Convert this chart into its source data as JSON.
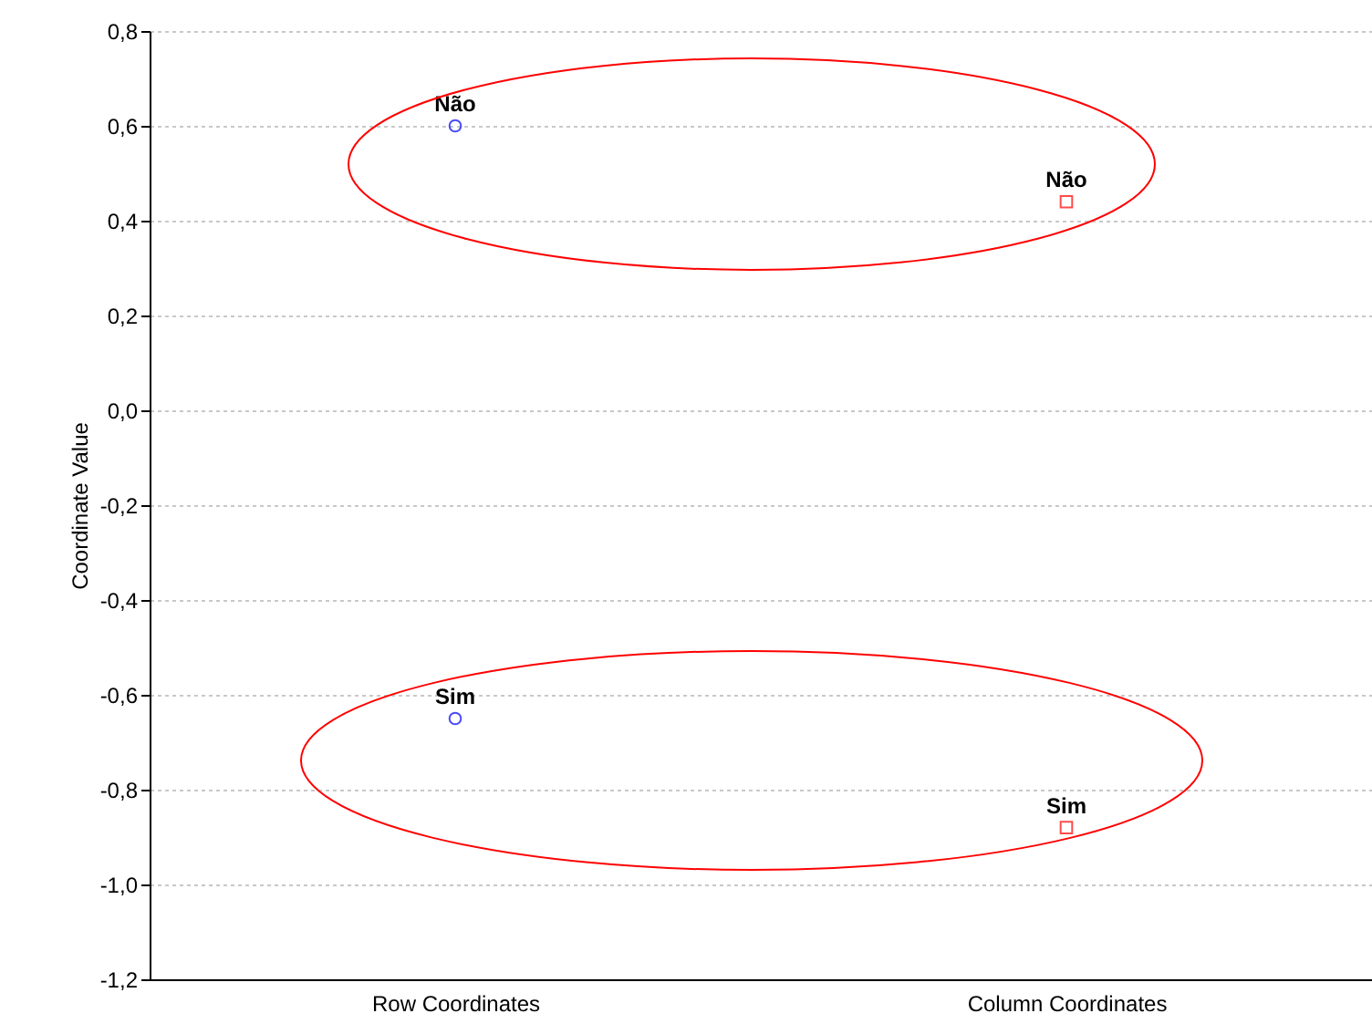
{
  "chart_data": {
    "type": "scatter",
    "ylabel": "Coordinate Value",
    "categories": [
      "Row Coordinates",
      "Column Coordinates"
    ],
    "ylim": [
      -1.2,
      0.8
    ],
    "yticks": [
      {
        "value": -1.2,
        "label": "-1,2"
      },
      {
        "value": -1.0,
        "label": "-1,0"
      },
      {
        "value": -0.8,
        "label": "-0,8"
      },
      {
        "value": -0.6,
        "label": "-0,6"
      },
      {
        "value": -0.4,
        "label": "-0,4"
      },
      {
        "value": -0.2,
        "label": "-0,2"
      },
      {
        "value": 0,
        "label": "0,0"
      },
      {
        "value": 0.2,
        "label": "0,2"
      },
      {
        "value": 0.4,
        "label": "0,4"
      },
      {
        "value": 0.6,
        "label": "0,6"
      },
      {
        "value": 0.8,
        "label": "0,8"
      }
    ],
    "grid": "y",
    "series": [
      {
        "type": "scatter",
        "color": "#0000ff",
        "marker": "circle",
        "x": [
          "Row Coordinates",
          "Row Coordinates"
        ],
        "values": [
          0.6,
          -0.65
        ],
        "value_labels": [
          "Não",
          "Sim"
        ]
      },
      {
        "type": "scatter",
        "color": "#ff0000",
        "marker": "square",
        "x": [
          "Column Coordinates",
          "Column Coordinates"
        ],
        "values": [
          0.44,
          -0.88
        ],
        "value_labels": [
          "Não",
          "Sim"
        ]
      }
    ]
  }
}
